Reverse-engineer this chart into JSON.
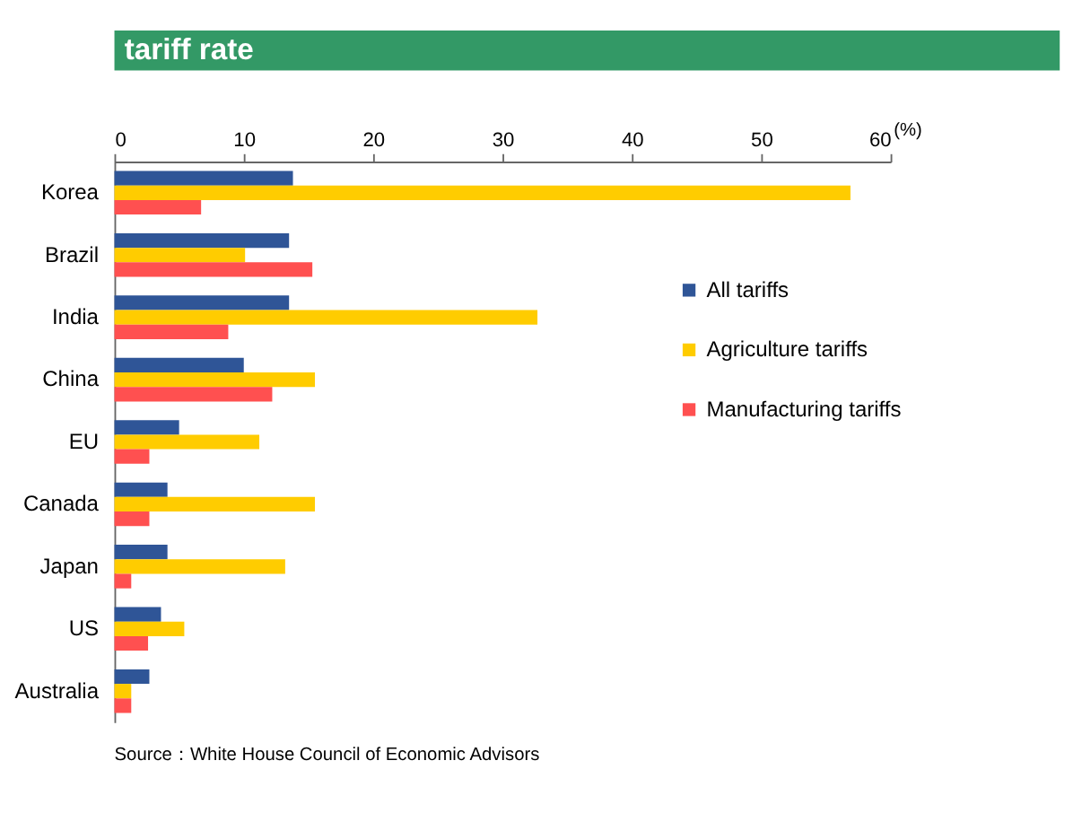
{
  "chart_data": {
    "type": "bar",
    "orientation": "horizontal",
    "title": "tariff rate",
    "xlabel": "(%)",
    "categories": [
      "Korea",
      "Brazil",
      "India",
      "China",
      "EU",
      "Canada",
      "Japan",
      "US",
      "Australia"
    ],
    "series": [
      {
        "name": "All tariffs",
        "color": "#2f5597",
        "values": [
          13.8,
          13.5,
          13.5,
          10.0,
          5.0,
          4.1,
          4.1,
          3.6,
          2.7
        ]
      },
      {
        "name": "Agriculture tariffs",
        "color": "#ffcc00",
        "values": [
          56.9,
          10.1,
          32.7,
          15.5,
          11.2,
          15.5,
          13.2,
          5.4,
          1.3
        ]
      },
      {
        "name": "Manufacturing tariffs",
        "color": "#ff5050",
        "values": [
          6.7,
          15.3,
          8.8,
          12.2,
          2.7,
          2.7,
          1.3,
          2.6,
          1.3
        ]
      }
    ],
    "xlim": [
      0,
      60
    ],
    "xticks": [
      0,
      10,
      20,
      30,
      40,
      50,
      60
    ],
    "grid": false,
    "legend": "right",
    "annotations": [
      "Source：White House Council of Economic Advisors"
    ]
  }
}
